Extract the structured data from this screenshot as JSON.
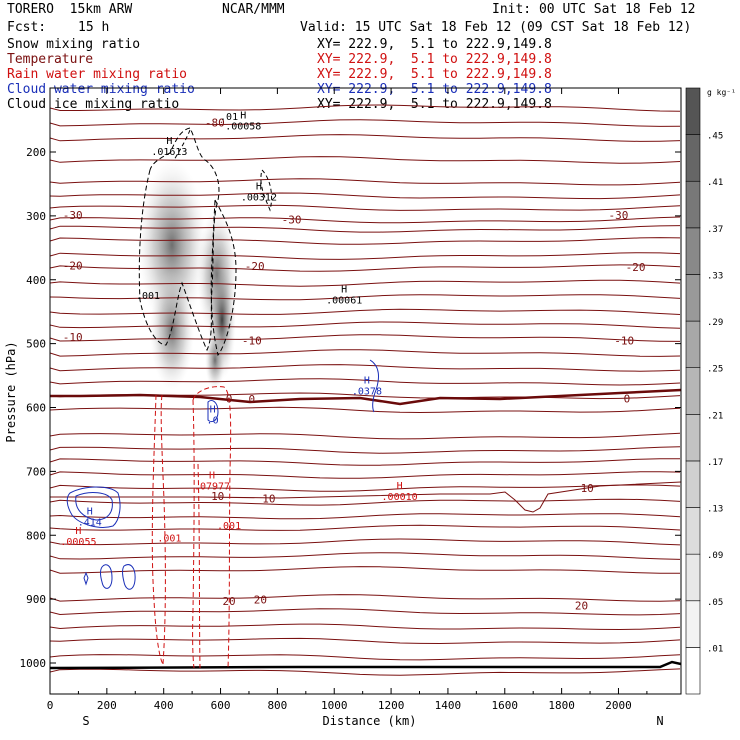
{
  "header": {
    "model": "TORERO  15km ARW",
    "org": "NCAR/MMM",
    "init": "Init: 00 UTC Sat 18 Feb 12",
    "fcst_label": "Fcst:",
    "fcst_value": "15 h",
    "valid": "Valid: 15 UTC Sat 18 Feb 12 (09 CST Sat 18 Feb 12)"
  },
  "fields": [
    {
      "name": "Snow mixing ratio",
      "xy": "XY= 222.9,  5.1 to 222.9,149.8",
      "color": "#000000"
    },
    {
      "name": "Temperature",
      "xy": "XY= 222.9,  5.1 to 222.9,149.8",
      "color": "#7a1010"
    },
    {
      "name": "Rain water mixing ratio",
      "xy": "XY= 222.9,  5.1 to 222.9,149.8",
      "color": "#d01010"
    },
    {
      "name": "Cloud water mixing ratio",
      "xy": "XY= 222.9,  5.1 to 222.9,149.8",
      "color": "#1a2fb8"
    },
    {
      "name": "Cloud ice mixing ratio",
      "xy": "XY= 222.9,  5.1 to 222.9,149.8",
      "color": "#000000"
    }
  ],
  "chart_data": {
    "type": "cross-section contour",
    "xlabel": "Distance (km)",
    "ylabel": "Pressure (hPa)",
    "xlim": [
      0,
      2220
    ],
    "ylim": [
      1050,
      100
    ],
    "x_ticks": [
      0,
      200,
      400,
      600,
      800,
      1000,
      1200,
      1400,
      1600,
      1800,
      2000
    ],
    "y_ticks": [
      200,
      300,
      400,
      500,
      600,
      700,
      800,
      900,
      1000
    ],
    "x_end_labels": {
      "left": "S",
      "right": "N"
    },
    "colorbar": {
      "unit": "g kg⁻¹",
      "ticks": [
        ".01",
        ".05",
        ".09",
        ".13",
        ".17",
        ".21",
        ".25",
        ".29",
        ".33",
        ".37",
        ".41",
        ".45"
      ],
      "colors": [
        "#ffffff",
        "#f3f3f3",
        "#e8e8e8",
        "#dcdcdc",
        "#d0d0d0",
        "#c3c3c3",
        "#b6b6b6",
        "#a8a8a8",
        "#999999",
        "#898989",
        "#787878",
        "#666666",
        "#555555"
      ]
    },
    "temperature_labels": [
      {
        "text": "-80",
        "x": 580,
        "p": 160
      },
      {
        "text": "-30",
        "x": 80,
        "p": 305
      },
      {
        "text": "-30",
        "x": 850,
        "p": 312
      },
      {
        "text": "-30",
        "x": 2000,
        "p": 305
      },
      {
        "text": "-20",
        "x": 80,
        "p": 384
      },
      {
        "text": "-20",
        "x": 720,
        "p": 385
      },
      {
        "text": "-20",
        "x": 2060,
        "p": 386
      },
      {
        "text": "-10",
        "x": 80,
        "p": 496
      },
      {
        "text": "-10",
        "x": 710,
        "p": 501
      },
      {
        "text": "-10",
        "x": 2020,
        "p": 501
      },
      {
        "text": "0",
        "x": 630,
        "p": 592
      },
      {
        "text": "0",
        "x": 710,
        "p": 593
      },
      {
        "text": "0",
        "x": 2030,
        "p": 592
      },
      {
        "text": "10",
        "x": 590,
        "p": 745
      },
      {
        "text": "10",
        "x": 770,
        "p": 749
      },
      {
        "text": "10",
        "x": 1890,
        "p": 732
      },
      {
        "text": "20",
        "x": 630,
        "p": 909
      },
      {
        "text": "20",
        "x": 740,
        "p": 907
      },
      {
        "text": "20",
        "x": 1870,
        "p": 916
      }
    ],
    "extrema": [
      {
        "field": "snow",
        "label": "H",
        "value": ".01613",
        "x": 420,
        "p": 205
      },
      {
        "field": "snow",
        "label": "H",
        "value": ".00312",
        "x": 735,
        "p": 276
      },
      {
        "field": "snow",
        "label": "H",
        "value": ".00061",
        "x": 1035,
        "p": 437
      },
      {
        "field": "ice",
        "label": "H",
        "value": ".00058",
        "x": 680,
        "p": 165
      },
      {
        "field": "ice",
        "label": "",
        "value": ".01",
        "x": 630,
        "p": 150
      },
      {
        "field": "snow",
        "label": "",
        "value": ".001",
        "x": 345,
        "p": 430
      },
      {
        "field": "cloud",
        "label": "H",
        "value": ".0378",
        "x": 1115,
        "p": 580
      },
      {
        "field": "cloud",
        "label": "H",
        "value": ".0",
        "x": 572,
        "p": 625
      },
      {
        "field": "cloud",
        "label": "H",
        "value": ".414",
        "x": 140,
        "p": 785
      },
      {
        "field": "rain",
        "label": "H",
        "value": ".07977",
        "x": 570,
        "p": 728
      },
      {
        "field": "rain",
        "label": "H",
        "value": ".00010",
        "x": 1230,
        "p": 745
      },
      {
        "field": "rain",
        "label": "H",
        "value": ".00055",
        "x": 100,
        "p": 815
      },
      {
        "field": "rain",
        "label": "",
        "value": ".001",
        "x": 420,
        "p": 810
      },
      {
        "field": "rain",
        "label": "",
        "value": ".001",
        "x": 630,
        "p": 790
      }
    ]
  }
}
